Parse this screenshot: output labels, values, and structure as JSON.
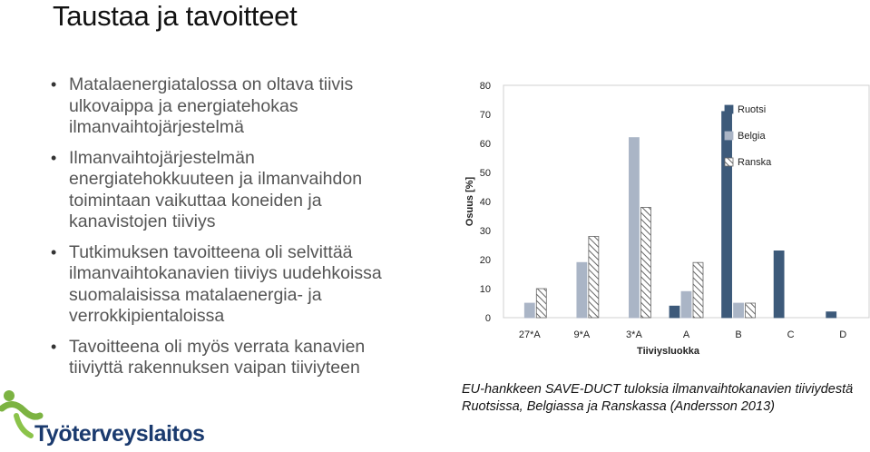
{
  "slide": {
    "title": "Taustaa ja tavoitteet",
    "bullets": [
      {
        "lines": [
          "Matalaenergiatalossa on oltava tiivis",
          "ulkovaippa ja energiatehokas",
          "ilmanvaihtojärjestelmä"
        ]
      },
      {
        "lines": [
          "Ilmanvaihtojärjestelmän",
          "energiatehokkuuteen ja ilmanvaihdon",
          "toimintaan vaikuttaa koneiden ja",
          "kanavistojen tiiviys"
        ]
      },
      {
        "lines": [
          "Tutkimuksen tavoitteena oli selvittää",
          "ilmanvaihtokanavien tiiviys uudehkoissa",
          "suomalaisissa matalaenergia- ja",
          "verrokkipientaloissa"
        ]
      },
      {
        "lines": [
          "Tavoitteena oli myös verrata kanavien",
          "tiiviyttä rakennuksen vaipan tiiviyteen"
        ]
      }
    ],
    "logo_text": "Työterveyslaitos",
    "caption_lines": [
      "EU-hankkeen SAVE-DUCT tuloksia ilmanvaihtokanavien tiiviydestä",
      "Ruotsissa, Belgiassa ja Ranskassa (Andersson 2013)"
    ]
  },
  "chart_data": {
    "type": "bar",
    "categories": [
      "27*A",
      "9*A",
      "3*A",
      "A",
      "B",
      "C",
      "D"
    ],
    "series": [
      {
        "name": "Ruotsi",
        "color": "#3d5a7a",
        "pattern": "solid",
        "values": [
          0,
          0,
          0,
          4,
          71,
          23,
          2
        ]
      },
      {
        "name": "Belgia",
        "color": "#aab5c6",
        "pattern": "solid",
        "values": [
          5,
          19,
          62,
          9,
          5,
          0,
          0
        ]
      },
      {
        "name": "Ranska",
        "color": "#666666",
        "pattern": "hatch",
        "values": [
          10,
          28,
          38,
          19,
          5,
          0,
          0
        ]
      }
    ],
    "xlabel": "Tiiviysluokka",
    "ylabel": "Osuus [%]",
    "ylim": [
      0,
      80
    ],
    "yticks": [
      "0",
      "10",
      "20",
      "30",
      "40",
      "50",
      "60",
      "70",
      "80"
    ],
    "grid": false,
    "legend": "top-right"
  }
}
